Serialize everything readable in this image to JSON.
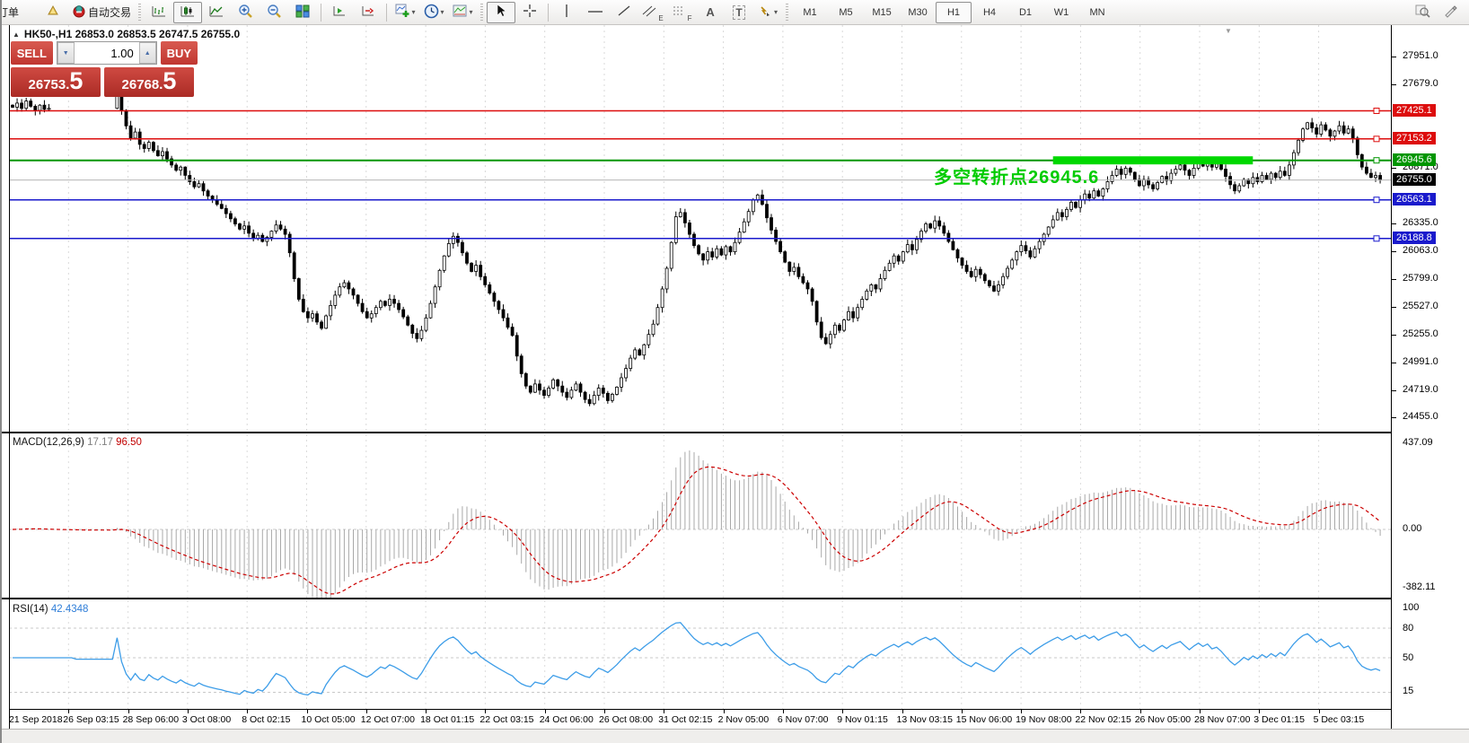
{
  "toolbar": {
    "orders_label": "订单",
    "autotrading_label": "自动交易",
    "timeframes": {
      "items": [
        "M1",
        "M5",
        "M15",
        "M30",
        "H1",
        "H4",
        "D1",
        "W1",
        "MN"
      ],
      "active": "H1"
    }
  },
  "icons": {
    "collapse": "▲",
    "shift_marker": "▼",
    "text_tool": "A",
    "label_tool": "T",
    "channel_suffix": "E",
    "fib_suffix": "F",
    "spin_down": "▼",
    "spin_up": "▲"
  },
  "symbol_info": {
    "text": "HK50-,H1  26853.0 26853.5 26747.5 26755.0"
  },
  "trade_panel": {
    "sell_label": "SELL",
    "buy_label": "BUY",
    "volume": "1.00",
    "sell_price": {
      "main": "26753",
      "dot": ".",
      "big": "5"
    },
    "buy_price": {
      "main": "26768",
      "dot": ".",
      "big": "5"
    }
  },
  "macd": {
    "name_label": "MACD(12,26,9)",
    "value_main": "17.17",
    "value_signal": "96.50",
    "axis_labels": [
      "437.09",
      "0.00",
      "-382.11"
    ]
  },
  "rsi": {
    "name_label": "RSI(14)",
    "value": "42.4348",
    "axis_labels": [
      "100",
      "80",
      "50",
      "15"
    ],
    "levels": [
      80,
      50,
      15
    ]
  },
  "chart_objects": {
    "hlines": [
      {
        "price": 27425.1,
        "label": "27425.1",
        "color": "#dd0d0d"
      },
      {
        "price": 27153.2,
        "label": "27153.2",
        "color": "#dd0d0d"
      },
      {
        "price": 26945.6,
        "label": "26945.6",
        "color": "#009600"
      },
      {
        "price": 26563.1,
        "label": "26563.1",
        "color": "#1a1acc"
      },
      {
        "price": 26188.8,
        "label": "26188.8",
        "color": "#1a1acc"
      }
    ],
    "current_price": {
      "price": 26755.0,
      "label": "26755.0",
      "badge_color": "#000000",
      "line_color": "#b4b4b4"
    },
    "highlight": {
      "start_index": 229,
      "end_index": 273,
      "price": 26945.6,
      "color": "#00d800"
    },
    "annotation": {
      "text": "多空转折点26945.6",
      "color": "#00cc00"
    }
  },
  "chart_data": {
    "type": "candlestick",
    "symbol": "HK50-",
    "timeframe": "H1",
    "ohlc_display": {
      "open": "26853.0",
      "high": "26853.5",
      "low": "26747.5",
      "close": "26755.0"
    },
    "price_axis_ticks": [
      27951.0,
      27679.0,
      26871.0,
      26335.0,
      26063.0,
      25799.0,
      25527.0,
      25255.0,
      24991.0,
      24719.0,
      24455.0
    ],
    "ylim": [
      24400,
      27990
    ],
    "closes": [
      27460,
      27500,
      27450,
      27520,
      27470,
      27430,
      27480,
      27440,
      27450,
      null,
      null,
      null,
      null,
      null,
      null,
      null,
      null,
      null,
      null,
      null,
      null,
      null,
      null,
      27580,
      27430,
      27280,
      27160,
      27220,
      27100,
      27060,
      27120,
      27040,
      26990,
      27030,
      26960,
      26900,
      26850,
      26880,
      26800,
      26740,
      26690,
      26720,
      26650,
      26600,
      26560,
      26520,
      26480,
      26430,
      26380,
      26330,
      26280,
      26310,
      26240,
      26190,
      26220,
      26160,
      26200,
      26260,
      26320,
      26280,
      26230,
      26050,
      25800,
      25600,
      25480,
      25420,
      25460,
      25380,
      25320,
      25440,
      25540,
      25640,
      25720,
      25760,
      25700,
      25640,
      25560,
      25480,
      25420,
      25460,
      25520,
      25580,
      25540,
      25600,
      25560,
      25500,
      25430,
      25350,
      25270,
      25220,
      25300,
      25420,
      25560,
      25720,
      25880,
      26020,
      26140,
      26210,
      26150,
      26050,
      25950,
      25870,
      25930,
      25820,
      25740,
      25660,
      25580,
      25500,
      25420,
      25330,
      25250,
      25050,
      24880,
      24760,
      24700,
      24780,
      24720,
      24670,
      24740,
      24820,
      24760,
      24700,
      24650,
      24720,
      24780,
      24700,
      24630,
      24590,
      24670,
      24740,
      24690,
      24620,
      24680,
      24750,
      24840,
      24930,
      25030,
      25110,
      25060,
      25160,
      25260,
      25360,
      25520,
      25700,
      25900,
      26150,
      26400,
      26440,
      26340,
      26230,
      26120,
      26040,
      25980,
      26060,
      26010,
      26090,
      26030,
      26110,
      26060,
      26150,
      26250,
      26350,
      26450,
      26560,
      26610,
      26520,
      26390,
      26270,
      26160,
      26060,
      25960,
      25870,
      25910,
      25820,
      25760,
      25700,
      25580,
      25380,
      25230,
      25170,
      25260,
      25350,
      25300,
      25400,
      25480,
      25420,
      25520,
      25600,
      25680,
      25740,
      25700,
      25800,
      25880,
      25950,
      26020,
      25970,
      26060,
      26130,
      26080,
      26180,
      26260,
      26330,
      26290,
      26360,
      26310,
      26240,
      26160,
      26080,
      26000,
      25930,
      25870,
      25820,
      25890,
      25840,
      25780,
      25730,
      25680,
      25740,
      25820,
      25900,
      25980,
      26060,
      26120,
      26070,
      26010,
      26090,
      26160,
      26230,
      26300,
      26370,
      26440,
      26400,
      26470,
      26540,
      26490,
      26560,
      26620,
      26580,
      26650,
      26600,
      26670,
      26740,
      26800,
      26860,
      26810,
      26870,
      26830,
      26760,
      26700,
      26760,
      26710,
      26670,
      26730,
      26790,
      26750,
      26820,
      26860,
      26900,
      26850,
      26800,
      26870,
      26930,
      26890,
      26940,
      26880,
      26910,
      26860,
      26790,
      26710,
      26650,
      26700,
      26760,
      26720,
      26780,
      26740,
      26800,
      26760,
      26820,
      26780,
      26840,
      26800,
      26900,
      27020,
      27140,
      27250,
      27310,
      27260,
      27200,
      27290,
      27240,
      27180,
      27230,
      27280,
      27210,
      27250,
      27160,
      27000,
      26880,
      26820,
      26780,
      26800,
      26755
    ],
    "indicators": [
      {
        "name": "MACD",
        "params": "12,26,9",
        "values": [
          17.17,
          96.5
        ],
        "axis": [
          437.09,
          0.0,
          -382.11
        ]
      },
      {
        "name": "RSI",
        "params": "14",
        "value": 42.4348,
        "axis": [
          100,
          80,
          50,
          15
        ]
      }
    ],
    "time_labels": [
      "21 Sep 2018",
      "26 Sep 03:15",
      "28 Sep 06:00",
      "3 Oct 08:00",
      "8 Oct 02:15",
      "10 Oct 05:00",
      "12 Oct 07:00",
      "18 Oct 01:15",
      "22 Oct 03:15",
      "24 Oct 06:00",
      "26 Oct 08:00",
      "31 Oct 02:15",
      "2 Nov 05:00",
      "6 Nov 07:00",
      "9 Nov 01:15",
      "13 Nov 03:15",
      "15 Nov 06:00",
      "19 Nov 08:00",
      "22 Nov 02:15",
      "26 Nov 05:00",
      "28 Nov 07:00",
      "3 Dec 01:15",
      "5 Dec 03:15"
    ]
  }
}
